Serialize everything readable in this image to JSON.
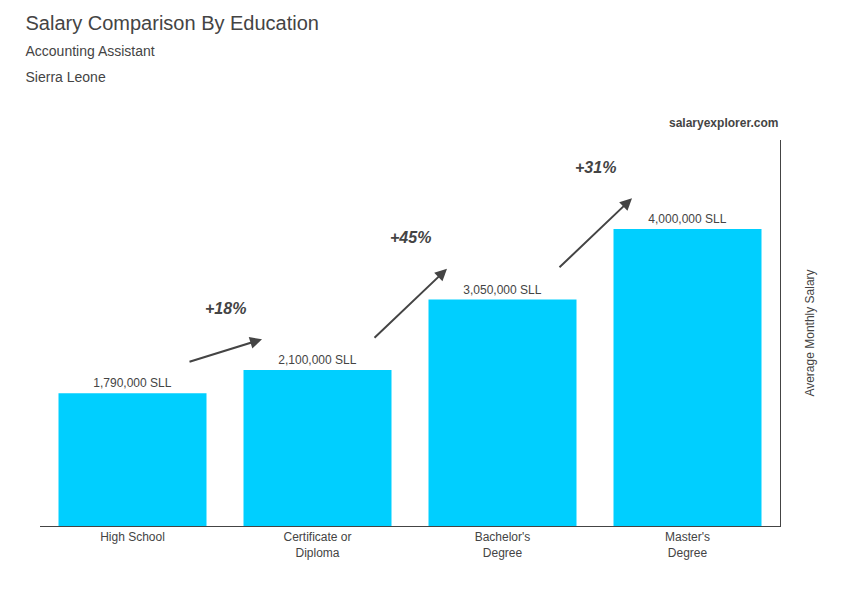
{
  "chart_data": {
    "type": "bar",
    "title": "Salary Comparison By Education",
    "subtitle": [
      "Accounting Assistant",
      "Sierra Leone"
    ],
    "ylabel": "Average Monthly Salary",
    "categories": [
      "High School",
      "Certificate or\nDiploma",
      "Bachelor's\nDegree",
      "Master's\nDegree"
    ],
    "values": [
      1790000,
      2100000,
      3050000,
      4000000
    ],
    "value_labels": [
      "1,790,000 SLL",
      "2,100,000 SLL",
      "3,050,000 SLL",
      "4,000,000 SLL"
    ],
    "data_labels": true,
    "color": "#00cfff",
    "ylim": [
      0,
      5200000
    ],
    "yticks": [],
    "tick_labels": "x",
    "grid": false,
    "annotations": [
      {
        "text": "+18%",
        "between": [
          "High School",
          "Certificate or\nDiploma"
        ]
      },
      {
        "text": "+45%",
        "between": [
          "Certificate or\nDiploma",
          "Bachelor's\nDegree"
        ]
      },
      {
        "text": "+31%",
        "between": [
          "Bachelor's\nDegree",
          "Master's\nDegree"
        ]
      },
      {
        "text": "salaryexplorer.com"
      }
    ]
  }
}
